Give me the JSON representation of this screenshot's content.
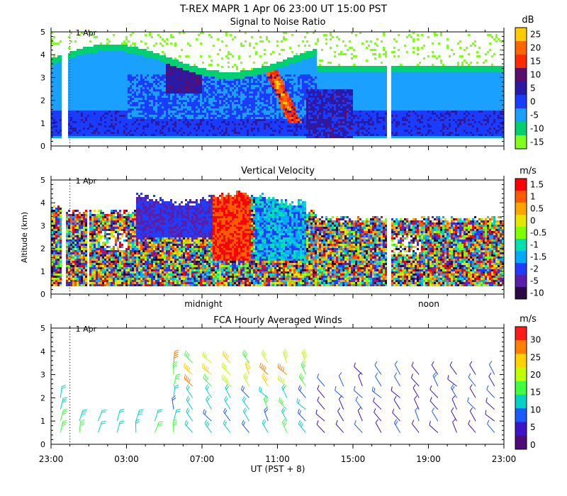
{
  "figure": {
    "title": "T-REX  MAPR  1 Apr 06  23:00 UT  15:00  PST",
    "xlabel": "UT  (PST + 8)",
    "x_ticks": [
      "23:00",
      "03:00",
      "07:00",
      "11:00",
      "15:00",
      "19:00",
      "23:00"
    ],
    "date_marker": "1 Apr",
    "ylabel": "Altitude (km)"
  },
  "chart_data": [
    {
      "type": "heatmap",
      "title": "Signal to Noise Ratio",
      "ylabel": "",
      "ylim": [
        0,
        5
      ],
      "y_ticks": [
        "0",
        "1",
        "2",
        "3",
        "4",
        "5"
      ],
      "colorbar_unit": "dB",
      "colorbar_ticks": [
        "25",
        "20",
        "15",
        "10",
        "5",
        "0",
        "-5",
        "-10",
        "-15"
      ],
      "colorbar_colors": [
        "#ffcc00",
        "#ff6600",
        "#ff2a00",
        "#5a0f6e",
        "#2a1aa8",
        "#1a3cff",
        "#1aa0ff",
        "#00d070",
        "#7fff1a"
      ],
      "x_range_hours_ut": [
        23,
        47
      ],
      "altitude_coverage_km": [
        0.4,
        4.4
      ],
      "date_marker": "1 Apr"
    },
    {
      "type": "heatmap",
      "title": "Vertical Velocity",
      "ylabel": "Altitude (km)",
      "ylim": [
        0,
        5
      ],
      "y_ticks": [
        "0",
        "1",
        "2",
        "3",
        "4",
        "5"
      ],
      "colorbar_unit": "m/s",
      "colorbar_ticks": [
        "1.5",
        "1",
        "0.5",
        "0",
        "-0.5",
        "-1",
        "-1.5",
        "-2",
        "-5",
        "-10"
      ],
      "colorbar_colors": [
        "#ff0000",
        "#ff5a00",
        "#ffa500",
        "#e6e600",
        "#7fff00",
        "#00e0b0",
        "#00aaff",
        "#1f3cff",
        "#5a1fa8",
        "#2a0a40"
      ],
      "annotations": [
        "midnight",
        "noon"
      ],
      "date_marker": "1 Apr"
    },
    {
      "type": "scatter",
      "title": "FCA Hourly Averaged Winds",
      "ylim": [
        0,
        5
      ],
      "y_ticks": [
        "0",
        "1",
        "2",
        "3",
        "4",
        "5"
      ],
      "colorbar_unit": "m/s",
      "colorbar_ticks": [
        "30",
        "25",
        "20",
        "15",
        "10",
        "5",
        "0"
      ],
      "colorbar_colors": [
        "#ff1a1a",
        "#ff8000",
        "#ffd200",
        "#bfff00",
        "#40ff40",
        "#00d2c8",
        "#1a5aff",
        "#3c14c8",
        "#500a78"
      ],
      "date_marker": "1 Apr",
      "series": [
        {
          "name": "wind barbs (speed m/s)",
          "x_hours_ut": [
            23.5,
            24.5,
            25.5,
            26.5,
            27.5,
            28.5,
            29.5,
            30.5,
            31.5,
            32.5,
            33.5,
            34.5,
            35.5,
            36.5,
            37.5,
            38.5,
            39.5,
            40.5,
            41.5,
            42.5,
            43.5,
            44.5,
            45.5,
            46.5
          ],
          "altitudes_km": [
            0.5,
            1.0,
            1.5,
            2.0,
            2.5,
            3.0,
            3.5,
            4.0
          ]
        }
      ]
    }
  ]
}
